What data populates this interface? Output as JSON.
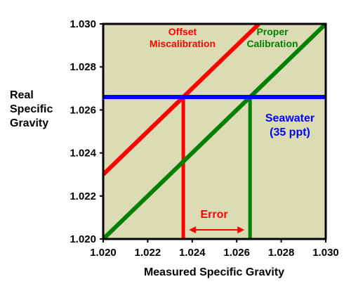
{
  "chart_data": {
    "type": "line",
    "xlabel": "Measured Specific Gravity",
    "ylabel": [
      "Real",
      "Specific",
      "Gravity"
    ],
    "xlim": [
      1.02,
      1.03
    ],
    "ylim": [
      1.02,
      1.03
    ],
    "xticks": [
      "1.020",
      "1.022",
      "1.024",
      "1.026",
      "1.028",
      "1.030"
    ],
    "yticks": [
      "1.020",
      "1.022",
      "1.024",
      "1.026",
      "1.028",
      "1.030"
    ],
    "grid": false,
    "plot_background": "#dcdcb4",
    "series": [
      {
        "key": "offset",
        "color": "#ff0000",
        "points": [
          [
            1.02,
            1.023
          ],
          [
            1.027,
            1.03
          ]
        ]
      },
      {
        "key": "proper",
        "color": "#008000",
        "points": [
          [
            1.02,
            1.02
          ],
          [
            1.03,
            1.03
          ]
        ]
      },
      {
        "key": "seawater",
        "color": "#0000ff",
        "points": [
          [
            1.02,
            1.0266
          ],
          [
            1.03,
            1.0266
          ]
        ]
      }
    ],
    "reference_lines": [
      {
        "color": "#ff0000",
        "x": 1.0236,
        "y_from": 1.02,
        "y_to": 1.0266
      },
      {
        "color": "#008000",
        "x": 1.0266,
        "y_from": 1.02,
        "y_to": 1.0266
      }
    ],
    "error_span": {
      "color": "#ff0000",
      "x_from": 1.0236,
      "x_to": 1.0266,
      "y": 1.0204
    },
    "annotations": {
      "offset": {
        "lines": [
          "Offset",
          "Miscalibration"
        ],
        "color": "#ff0000"
      },
      "proper": {
        "lines": [
          "Proper",
          "Calibration"
        ],
        "color": "#008000"
      },
      "seawater": {
        "lines": [
          "Seawater",
          "(35 ppt)"
        ],
        "color": "#0000ff"
      },
      "error": {
        "lines": [
          "Error"
        ],
        "color": "#ff0000"
      }
    }
  }
}
